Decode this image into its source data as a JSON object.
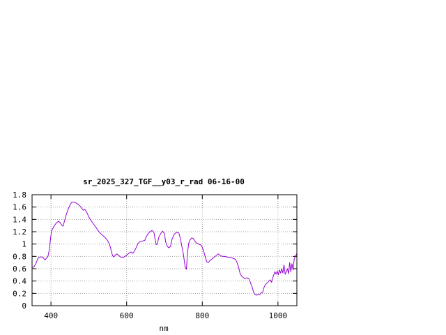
{
  "chart_data": {
    "type": "line",
    "title": "sr_2025_327_TGF__y03_r_rad 06-16-00",
    "xlabel": "nm",
    "ylabel": "",
    "xlim": [
      350,
      1050
    ],
    "ylim": [
      0,
      1.8
    ],
    "x_ticks": [
      400,
      600,
      800,
      1000
    ],
    "x_tick_labels": [
      "400",
      "600",
      "800",
      "1000"
    ],
    "y_ticks": [
      0,
      0.2,
      0.4,
      0.6,
      0.8,
      1,
      1.2,
      1.4,
      1.6,
      1.8
    ],
    "y_tick_labels": [
      "0",
      "0.2",
      "0.4",
      "0.6",
      "0.8",
      "1",
      "1.2",
      "1.4",
      "1.6",
      "1.8"
    ],
    "grid": true,
    "colors": {
      "series": "#9400d3",
      "grid": "#a0a0a0",
      "axis": "#000000"
    },
    "series": [
      {
        "points": [
          [
            350,
            0.62
          ],
          [
            355,
            0.63
          ],
          [
            360,
            0.68
          ],
          [
            365,
            0.76
          ],
          [
            370,
            0.79
          ],
          [
            378,
            0.79
          ],
          [
            384,
            0.74
          ],
          [
            392,
            0.8
          ],
          [
            396,
            0.92
          ],
          [
            399,
            1.1
          ],
          [
            402,
            1.22
          ],
          [
            408,
            1.29
          ],
          [
            414,
            1.34
          ],
          [
            420,
            1.37
          ],
          [
            424,
            1.35
          ],
          [
            428,
            1.31
          ],
          [
            432,
            1.29
          ],
          [
            436,
            1.38
          ],
          [
            440,
            1.47
          ],
          [
            445,
            1.56
          ],
          [
            450,
            1.63
          ],
          [
            455,
            1.68
          ],
          [
            462,
            1.68
          ],
          [
            468,
            1.66
          ],
          [
            475,
            1.63
          ],
          [
            480,
            1.59
          ],
          [
            485,
            1.55
          ],
          [
            490,
            1.56
          ],
          [
            495,
            1.51
          ],
          [
            500,
            1.44
          ],
          [
            505,
            1.39
          ],
          [
            512,
            1.33
          ],
          [
            520,
            1.26
          ],
          [
            528,
            1.19
          ],
          [
            535,
            1.15
          ],
          [
            542,
            1.11
          ],
          [
            548,
            1.07
          ],
          [
            553,
            1.02
          ],
          [
            557,
            0.95
          ],
          [
            560,
            0.87
          ],
          [
            563,
            0.81
          ],
          [
            566,
            0.79
          ],
          [
            570,
            0.82
          ],
          [
            574,
            0.84
          ],
          [
            578,
            0.82
          ],
          [
            584,
            0.79
          ],
          [
            590,
            0.78
          ],
          [
            596,
            0.8
          ],
          [
            602,
            0.83
          ],
          [
            608,
            0.86
          ],
          [
            612,
            0.87
          ],
          [
            616,
            0.85
          ],
          [
            620,
            0.88
          ],
          [
            625,
            0.94
          ],
          [
            630,
            1.01
          ],
          [
            636,
            1.04
          ],
          [
            642,
            1.05
          ],
          [
            648,
            1.06
          ],
          [
            652,
            1.12
          ],
          [
            657,
            1.17
          ],
          [
            662,
            1.2
          ],
          [
            667,
            1.22
          ],
          [
            672,
            1.19
          ],
          [
            675,
            1.09
          ],
          [
            678,
            0.99
          ],
          [
            681,
            1.0
          ],
          [
            685,
            1.11
          ],
          [
            690,
            1.17
          ],
          [
            695,
            1.21
          ],
          [
            700,
            1.17
          ],
          [
            703,
            1.04
          ],
          [
            707,
            0.97
          ],
          [
            711,
            0.94
          ],
          [
            716,
            0.96
          ],
          [
            720,
            1.08
          ],
          [
            726,
            1.16
          ],
          [
            732,
            1.19
          ],
          [
            738,
            1.18
          ],
          [
            742,
            1.09
          ],
          [
            746,
            0.96
          ],
          [
            750,
            0.84
          ],
          [
            753,
            0.7
          ],
          [
            755,
            0.62
          ],
          [
            758,
            0.59
          ],
          [
            761,
            0.86
          ],
          [
            764,
            1.01
          ],
          [
            768,
            1.07
          ],
          [
            772,
            1.1
          ],
          [
            776,
            1.09
          ],
          [
            780,
            1.05
          ],
          [
            784,
            1.02
          ],
          [
            790,
            1.0
          ],
          [
            795,
            0.99
          ],
          [
            799,
            0.96
          ],
          [
            803,
            0.9
          ],
          [
            808,
            0.79
          ],
          [
            812,
            0.71
          ],
          [
            816,
            0.7
          ],
          [
            820,
            0.73
          ],
          [
            826,
            0.76
          ],
          [
            832,
            0.79
          ],
          [
            838,
            0.82
          ],
          [
            842,
            0.84
          ],
          [
            846,
            0.82
          ],
          [
            852,
            0.8
          ],
          [
            858,
            0.8
          ],
          [
            866,
            0.79
          ],
          [
            874,
            0.78
          ],
          [
            882,
            0.77
          ],
          [
            888,
            0.75
          ],
          [
            892,
            0.7
          ],
          [
            896,
            0.62
          ],
          [
            900,
            0.52
          ],
          [
            904,
            0.48
          ],
          [
            908,
            0.46
          ],
          [
            912,
            0.44
          ],
          [
            916,
            0.45
          ],
          [
            920,
            0.45
          ],
          [
            924,
            0.43
          ],
          [
            928,
            0.36
          ],
          [
            932,
            0.3
          ],
          [
            936,
            0.21
          ],
          [
            940,
            0.18
          ],
          [
            944,
            0.17
          ],
          [
            948,
            0.19
          ],
          [
            952,
            0.18
          ],
          [
            956,
            0.21
          ],
          [
            960,
            0.22
          ],
          [
            962,
            0.28
          ],
          [
            965,
            0.32
          ],
          [
            968,
            0.35
          ],
          [
            972,
            0.37
          ],
          [
            976,
            0.4
          ],
          [
            980,
            0.42
          ],
          [
            983,
            0.38
          ],
          [
            986,
            0.45
          ],
          [
            989,
            0.5
          ],
          [
            992,
            0.55
          ],
          [
            995,
            0.51
          ],
          [
            998,
            0.56
          ],
          [
            1001,
            0.5
          ],
          [
            1004,
            0.58
          ],
          [
            1007,
            0.53
          ],
          [
            1010,
            0.6
          ],
          [
            1013,
            0.53
          ],
          [
            1016,
            0.66
          ],
          [
            1019,
            0.51
          ],
          [
            1022,
            0.55
          ],
          [
            1025,
            0.6
          ],
          [
            1028,
            0.52
          ],
          [
            1031,
            0.7
          ],
          [
            1034,
            0.55
          ],
          [
            1037,
            0.68
          ],
          [
            1040,
            0.58
          ],
          [
            1043,
            0.76
          ],
          [
            1046,
            0.8
          ],
          [
            1049,
            0.83
          ],
          [
            1050,
            0.85
          ]
        ]
      }
    ]
  }
}
